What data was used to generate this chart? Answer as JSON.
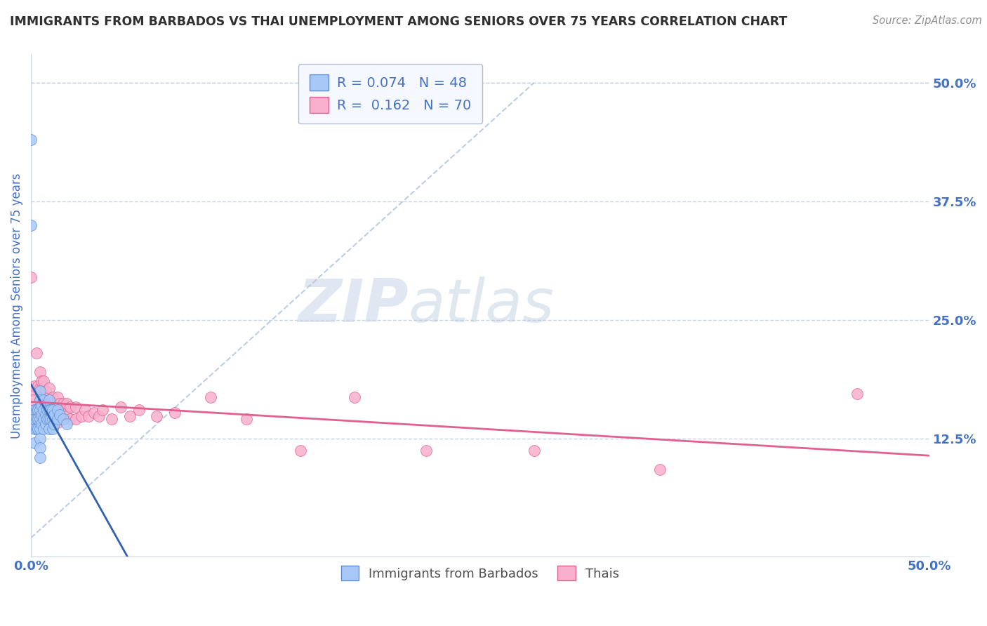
{
  "title": "IMMIGRANTS FROM BARBADOS VS THAI UNEMPLOYMENT AMONG SENIORS OVER 75 YEARS CORRELATION CHART",
  "source": "Source: ZipAtlas.com",
  "ylabel": "Unemployment Among Seniors over 75 years",
  "right_yticks": [
    "50.0%",
    "37.5%",
    "25.0%",
    "12.5%"
  ],
  "right_ytick_vals": [
    0.5,
    0.375,
    0.25,
    0.125
  ],
  "xlim": [
    0.0,
    0.5
  ],
  "ylim": [
    0.0,
    0.53
  ],
  "legend_r1": "R = 0.074",
  "legend_n1": "N = 48",
  "legend_r2": "R = 0.162",
  "legend_n2": "N = 70",
  "barbados_color": "#a8c8f8",
  "thai_color": "#f8b0cc",
  "barbados_edge_color": "#6090d0",
  "thai_edge_color": "#e06090",
  "barbados_line_color": "#3060b0",
  "thai_line_color": "#e06090",
  "diag_line_color": "#b8c8e0",
  "watermark_zip": "ZIP",
  "watermark_atlas": "atlas",
  "background_color": "#ffffff",
  "grid_color": "#c8d4e8",
  "title_color": "#303030",
  "axis_label_color": "#4472c4",
  "legend_box_color": "#f5f8ff",
  "legend_border_color": "#b0bcd0",
  "barbados_scatter_x": [
    0.0,
    0.0,
    0.002,
    0.002,
    0.002,
    0.002,
    0.003,
    0.003,
    0.003,
    0.004,
    0.004,
    0.004,
    0.005,
    0.005,
    0.005,
    0.005,
    0.005,
    0.005,
    0.005,
    0.005,
    0.006,
    0.006,
    0.006,
    0.007,
    0.007,
    0.007,
    0.007,
    0.008,
    0.008,
    0.008,
    0.009,
    0.009,
    0.01,
    0.01,
    0.01,
    0.01,
    0.011,
    0.011,
    0.012,
    0.012,
    0.012,
    0.013,
    0.013,
    0.015,
    0.015,
    0.016,
    0.018,
    0.02
  ],
  "barbados_scatter_y": [
    0.44,
    0.35,
    0.155,
    0.145,
    0.135,
    0.12,
    0.155,
    0.145,
    0.135,
    0.155,
    0.145,
    0.135,
    0.175,
    0.165,
    0.155,
    0.145,
    0.135,
    0.125,
    0.115,
    0.105,
    0.16,
    0.15,
    0.14,
    0.165,
    0.155,
    0.145,
    0.135,
    0.16,
    0.15,
    0.14,
    0.155,
    0.145,
    0.165,
    0.155,
    0.145,
    0.135,
    0.155,
    0.145,
    0.155,
    0.145,
    0.135,
    0.15,
    0.14,
    0.155,
    0.145,
    0.15,
    0.145,
    0.14
  ],
  "thai_scatter_x": [
    0.0,
    0.0,
    0.001,
    0.002,
    0.002,
    0.003,
    0.003,
    0.004,
    0.004,
    0.005,
    0.005,
    0.005,
    0.005,
    0.006,
    0.006,
    0.006,
    0.007,
    0.007,
    0.007,
    0.008,
    0.008,
    0.008,
    0.009,
    0.009,
    0.01,
    0.01,
    0.01,
    0.011,
    0.011,
    0.012,
    0.012,
    0.012,
    0.013,
    0.013,
    0.014,
    0.015,
    0.015,
    0.015,
    0.016,
    0.016,
    0.017,
    0.018,
    0.018,
    0.019,
    0.02,
    0.02,
    0.022,
    0.022,
    0.025,
    0.025,
    0.028,
    0.03,
    0.032,
    0.035,
    0.038,
    0.04,
    0.045,
    0.05,
    0.055,
    0.06,
    0.07,
    0.08,
    0.1,
    0.12,
    0.15,
    0.18,
    0.22,
    0.28,
    0.35,
    0.46
  ],
  "thai_scatter_y": [
    0.295,
    0.175,
    0.165,
    0.18,
    0.15,
    0.215,
    0.155,
    0.18,
    0.148,
    0.195,
    0.178,
    0.165,
    0.148,
    0.185,
    0.168,
    0.152,
    0.185,
    0.168,
    0.152,
    0.175,
    0.162,
    0.148,
    0.168,
    0.152,
    0.178,
    0.162,
    0.148,
    0.165,
    0.152,
    0.168,
    0.155,
    0.145,
    0.162,
    0.148,
    0.158,
    0.168,
    0.155,
    0.142,
    0.162,
    0.148,
    0.155,
    0.162,
    0.148,
    0.155,
    0.162,
    0.148,
    0.158,
    0.145,
    0.158,
    0.145,
    0.148,
    0.155,
    0.148,
    0.152,
    0.148,
    0.155,
    0.145,
    0.158,
    0.148,
    0.155,
    0.148,
    0.152,
    0.168,
    0.145,
    0.112,
    0.168,
    0.112,
    0.112,
    0.092,
    0.172
  ]
}
